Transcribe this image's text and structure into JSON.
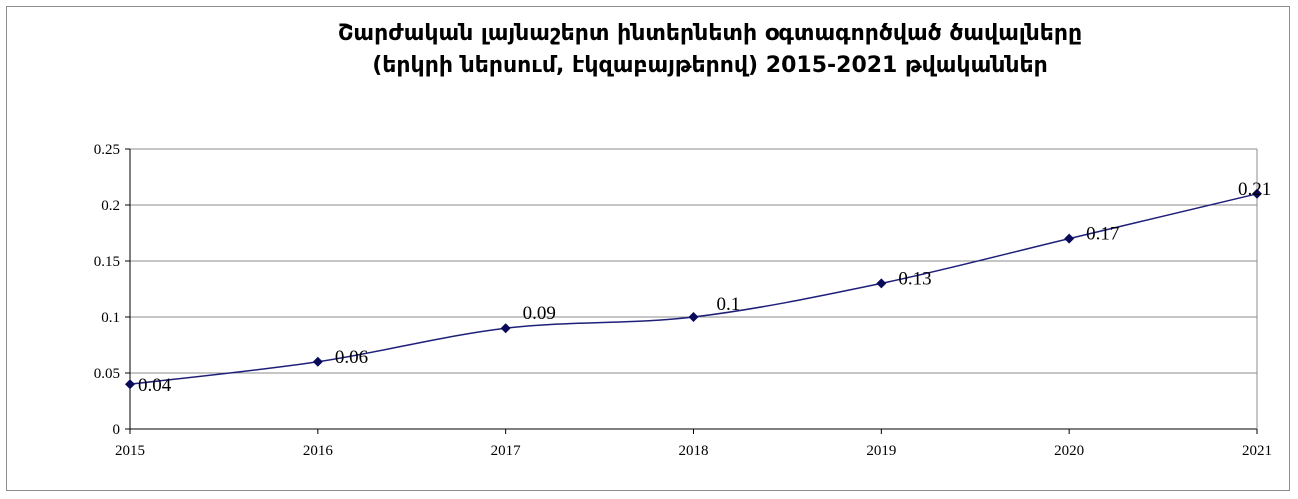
{
  "chart_data": {
    "type": "line",
    "title_line1": "Շարժական լայնաշերտ ինտերնետի օգտագործված ծավալները",
    "title_line2": "(երկրի ներսում, էկզաբայթերով) 2015-2021 թվականներ",
    "x": [
      "2015",
      "2016",
      "2017",
      "2018",
      "2019",
      "2020",
      "2021"
    ],
    "series": [
      {
        "values": [
          0.04,
          0.06,
          0.09,
          0.1,
          0.13,
          0.17,
          0.21
        ]
      }
    ],
    "data_labels": [
      "0.04",
      "0.06",
      "0.09",
      "0.1",
      "0.13",
      "0.17",
      "0.21"
    ],
    "y_ticks": [
      0,
      0.05,
      0.1,
      0.15,
      0.2,
      0.25
    ],
    "y_tick_labels": [
      "0",
      "0.05",
      "0.1",
      "0.15",
      "0.2",
      "0.25"
    ],
    "ylim": [
      0,
      0.25
    ],
    "grid": true,
    "legend": "none",
    "colors": {
      "line": "#1f1f7a",
      "marker": "#0a0a5a",
      "grid": "#8c8c8c"
    }
  }
}
